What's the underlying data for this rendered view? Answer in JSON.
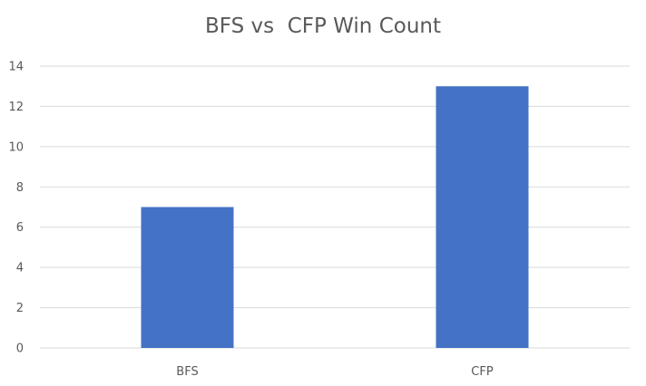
{
  "chart_data": {
    "type": "bar",
    "title": "BFS vs  CFP Win Count",
    "categories": [
      "BFS",
      "CFP"
    ],
    "values": [
      7,
      13
    ],
    "xlabel": "",
    "ylabel": "",
    "ylim": [
      0,
      14
    ],
    "y_ticks": [
      0,
      2,
      4,
      6,
      8,
      10,
      12,
      14
    ],
    "grid": true,
    "legend": "none",
    "colors": {
      "bar": "#4472C4",
      "grid": "#D9D9D9",
      "text": "#595959"
    }
  }
}
